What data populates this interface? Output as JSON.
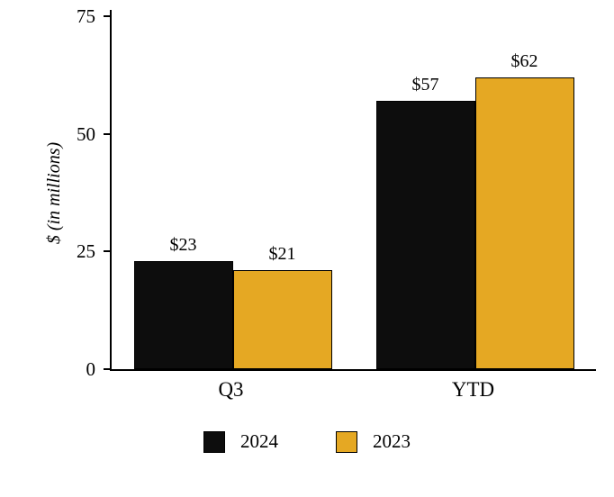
{
  "chart_data": {
    "type": "bar",
    "title": "",
    "xlabel": "",
    "ylabel": "$ (in millions)",
    "categories": [
      "Q3",
      "YTD"
    ],
    "series": [
      {
        "name": "2024",
        "color": "#0d0d0d",
        "values": [
          23,
          57
        ],
        "data_labels": [
          "$23",
          "$57"
        ]
      },
      {
        "name": "2023",
        "color": "#e5a823",
        "values": [
          21,
          62
        ],
        "data_labels": [
          "$21",
          "$62"
        ]
      }
    ],
    "ylim": [
      0,
      75
    ],
    "yticks": [
      0,
      25,
      50,
      75
    ],
    "grid": false,
    "legend_position": "bottom"
  }
}
